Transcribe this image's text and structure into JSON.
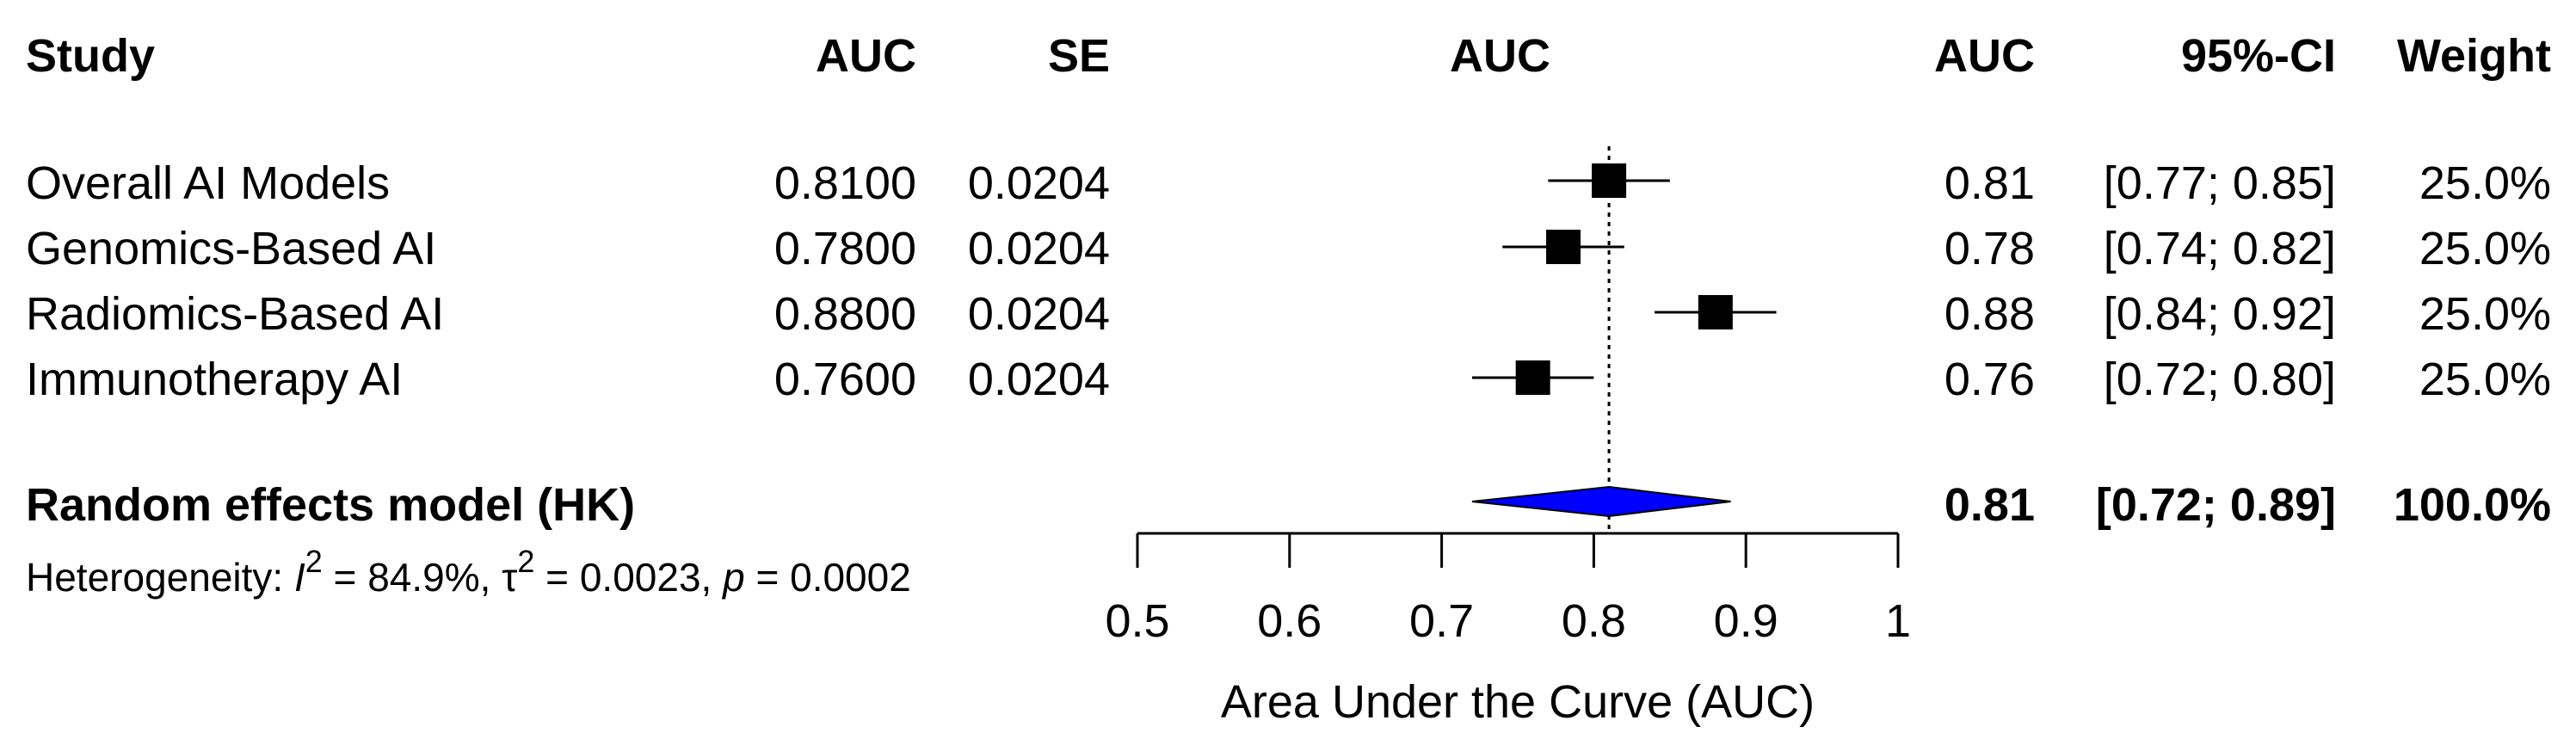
{
  "headers": {
    "study": "Study",
    "auc": "AUC",
    "se": "SE",
    "plot": "AUC",
    "auc2": "AUC",
    "ci": "95%-CI",
    "weight": "Weight"
  },
  "studies": [
    {
      "name": "Overall AI Models",
      "auc": "0.8100",
      "se": "0.0204",
      "auc_short": "0.81",
      "ci": "[0.77; 0.85]",
      "weight": "25.0%"
    },
    {
      "name": "Genomics-Based AI",
      "auc": "0.7800",
      "se": "0.0204",
      "auc_short": "0.78",
      "ci": "[0.74; 0.82]",
      "weight": "25.0%"
    },
    {
      "name": "Radiomics-Based AI",
      "auc": "0.8800",
      "se": "0.0204",
      "auc_short": "0.88",
      "ci": "[0.84; 0.92]",
      "weight": "25.0%"
    },
    {
      "name": "Immunotherapy AI",
      "auc": "0.7600",
      "se": "0.0204",
      "auc_short": "0.76",
      "ci": "[0.72; 0.80]",
      "weight": "25.0%"
    }
  ],
  "pooled": {
    "label": "Random effects model (HK)",
    "auc_short": "0.81",
    "ci": "[0.72; 0.89]",
    "weight": "100.0%"
  },
  "heterogeneity": {
    "prefix": "Heterogeneity: ",
    "i2_symbol": "I",
    "i2_value": " = 84.9%, ",
    "tau_symbol": "τ",
    "tau_value": " = 0.0023, ",
    "p_symbol": "p",
    "p_value": " = 0.0002",
    "sup": "2"
  },
  "chart_data": {
    "type": "forest",
    "xlabel": "Area Under the Curve (AUC)",
    "xlim": [
      0.5,
      1.0
    ],
    "xticks": [
      0.5,
      0.6,
      0.7,
      0.8,
      0.9,
      1.0
    ],
    "xtick_labels": [
      "0.5",
      "0.6",
      "0.7",
      "0.8",
      "0.9",
      "1"
    ],
    "reference_line": 0.81,
    "estimates": [
      {
        "name": "Overall AI Models",
        "auc": 0.81,
        "lower": 0.77,
        "upper": 0.85,
        "weight": 25.0
      },
      {
        "name": "Genomics-Based AI",
        "auc": 0.78,
        "lower": 0.74,
        "upper": 0.82,
        "weight": 25.0
      },
      {
        "name": "Radiomics-Based AI",
        "auc": 0.88,
        "lower": 0.84,
        "upper": 0.92,
        "weight": 25.0
      },
      {
        "name": "Immunotherapy AI",
        "auc": 0.76,
        "lower": 0.72,
        "upper": 0.8,
        "weight": 25.0
      }
    ],
    "pooled": {
      "name": "Random effects model (HK)",
      "auc": 0.81,
      "lower": 0.72,
      "upper": 0.89,
      "weight": 100.0
    },
    "colors": {
      "square": "#000000",
      "diamond": "#0000ff",
      "line": "#000000"
    }
  }
}
